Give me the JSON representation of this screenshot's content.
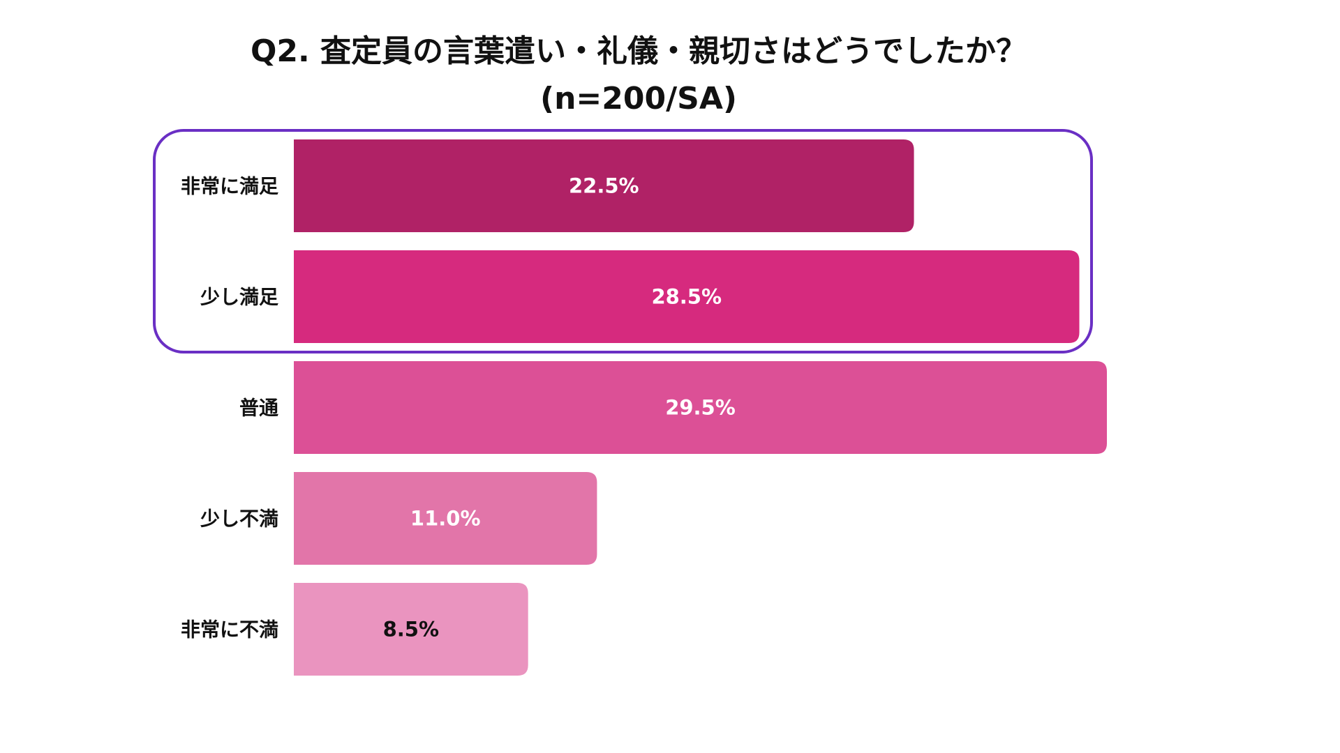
{
  "chart_data": {
    "type": "bar",
    "orientation": "horizontal",
    "title": "Q2. 査定員の言葉遣い・礼儀・親切さはどうでしたか？",
    "subtitle": "(n=200/SA)",
    "categories": [
      "非常に満足",
      "少し満足",
      "普通",
      "少し不満",
      "非常に不満"
    ],
    "values": [
      22.5,
      28.5,
      29.5,
      11.0,
      8.5
    ],
    "value_labels": [
      "22.5%",
      "28.5%",
      "29.5%",
      "11.0%",
      "8.5%"
    ],
    "unit": "%",
    "xlim": [
      0,
      29.5
    ],
    "grid": false,
    "legend": "none",
    "bar_colors": [
      "#b02266",
      "#d62a7e",
      "#dc5096",
      "#e275a9",
      "#ea94bf"
    ],
    "value_label_colors": [
      "#ffffff",
      "#ffffff",
      "#ffffff",
      "#ffffff",
      "#111111"
    ],
    "highlight": {
      "categories": [
        "非常に満足",
        "少し満足"
      ],
      "color": "#6a2fc4"
    }
  }
}
